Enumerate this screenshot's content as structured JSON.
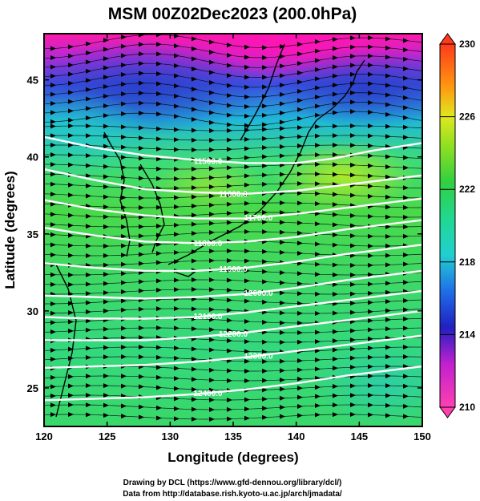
{
  "chart_data": {
    "type": "heatmap",
    "title": "MSM 00Z02Dec2023 (200.0hPa)",
    "xlabel": "Longitude (degrees)",
    "ylabel": "Latitude  (degrees)",
    "xlim": [
      120,
      150
    ],
    "ylim": [
      22.5,
      48
    ],
    "x_ticks": [
      {
        "value": 120,
        "label": "120"
      },
      {
        "value": 125,
        "label": "125"
      },
      {
        "value": 130,
        "label": "130"
      },
      {
        "value": 135,
        "label": "135"
      },
      {
        "value": 140,
        "label": "140"
      },
      {
        "value": 145,
        "label": "145"
      },
      {
        "value": 150,
        "label": "150"
      }
    ],
    "y_ticks": [
      {
        "value": 25,
        "label": "25"
      },
      {
        "value": 30,
        "label": "30"
      },
      {
        "value": 35,
        "label": "35"
      },
      {
        "value": 40,
        "label": "40"
      },
      {
        "value": 45,
        "label": "45"
      }
    ],
    "colorbar": {
      "min": 210,
      "max": 230,
      "ticks": [
        {
          "value": 210,
          "label": "210"
        },
        {
          "value": 214,
          "label": "214"
        },
        {
          "value": 218,
          "label": "218"
        },
        {
          "value": 222,
          "label": "222"
        },
        {
          "value": 226,
          "label": "226"
        },
        {
          "value": 230,
          "label": "230"
        }
      ]
    },
    "contours": [
      {
        "label": "11500.0",
        "points": [
          [
            120,
            41.3
          ],
          [
            124,
            40.6
          ],
          [
            128,
            40.1
          ],
          [
            132,
            39.8
          ],
          [
            136,
            39.6
          ],
          [
            140,
            39.6
          ],
          [
            143,
            39.9
          ],
          [
            146,
            40.4
          ],
          [
            150,
            40.9
          ]
        ]
      },
      {
        "label": "11600.0",
        "points": [
          [
            120,
            39.2
          ],
          [
            124,
            38.5
          ],
          [
            128,
            37.9
          ],
          [
            132,
            37.7
          ],
          [
            136,
            37.6
          ],
          [
            140,
            37.8
          ],
          [
            144,
            38.2
          ],
          [
            150,
            38.8
          ]
        ]
      },
      {
        "label": "11700.0",
        "points": [
          [
            120,
            37.2
          ],
          [
            124,
            36.6
          ],
          [
            128,
            36.2
          ],
          [
            132,
            36.0
          ],
          [
            136,
            36.0
          ],
          [
            140,
            36.3
          ],
          [
            144,
            36.7
          ],
          [
            150,
            37.3
          ]
        ]
      },
      {
        "label": "11800.0",
        "points": [
          [
            120,
            35.4
          ],
          [
            124,
            34.9
          ],
          [
            128,
            34.5
          ],
          [
            132,
            34.4
          ],
          [
            136,
            34.5
          ],
          [
            140,
            34.8
          ],
          [
            144,
            35.3
          ],
          [
            150,
            35.9
          ]
        ]
      },
      {
        "label": "11900.0",
        "points": [
          [
            120,
            33.1
          ],
          [
            124,
            32.8
          ],
          [
            128,
            32.6
          ],
          [
            132,
            32.6
          ],
          [
            136,
            32.8
          ],
          [
            140,
            33.2
          ],
          [
            144,
            33.7
          ],
          [
            150,
            34.3
          ]
        ]
      },
      {
        "label": "12000.0",
        "points": [
          [
            120,
            31.0
          ],
          [
            124,
            30.9
          ],
          [
            128,
            30.8
          ],
          [
            132,
            30.9
          ],
          [
            136,
            31.1
          ],
          [
            140,
            31.5
          ],
          [
            144,
            32.0
          ],
          [
            150,
            32.6
          ]
        ]
      },
      {
        "label": "12100.0",
        "points": [
          [
            120,
            29.6
          ],
          [
            124,
            29.5
          ],
          [
            128,
            29.5
          ],
          [
            132,
            29.6
          ],
          [
            136,
            29.9
          ],
          [
            140,
            30.3
          ],
          [
            144,
            30.7
          ],
          [
            150,
            31.3
          ]
        ]
      },
      {
        "label": "12200.0",
        "points": [
          [
            120,
            28.1
          ],
          [
            124,
            28.1
          ],
          [
            128,
            28.1
          ],
          [
            132,
            28.3
          ],
          [
            136,
            28.6
          ],
          [
            140,
            29.0
          ],
          [
            144,
            29.4
          ],
          [
            150,
            30.0
          ]
        ]
      },
      {
        "label": "12300.0",
        "points": [
          [
            120,
            26.3
          ],
          [
            124,
            26.4
          ],
          [
            128,
            26.5
          ],
          [
            132,
            26.7
          ],
          [
            136,
            27.0
          ],
          [
            140,
            27.4
          ],
          [
            144,
            27.8
          ],
          [
            150,
            28.4
          ]
        ]
      },
      {
        "label": "12400.0",
        "points": [
          [
            120,
            24.2
          ],
          [
            124,
            24.3
          ],
          [
            128,
            24.4
          ],
          [
            132,
            24.6
          ],
          [
            136,
            24.9
          ],
          [
            140,
            25.3
          ],
          [
            144,
            25.8
          ],
          [
            150,
            26.4
          ]
        ]
      }
    ]
  },
  "footer": {
    "credit_line": "Drawing by DCL (https://www.gfd-dennou.org/library/dcl/)",
    "data_line": "Data from http://database.rish.kyoto-u.ac.jp/arch/jmadata/"
  }
}
